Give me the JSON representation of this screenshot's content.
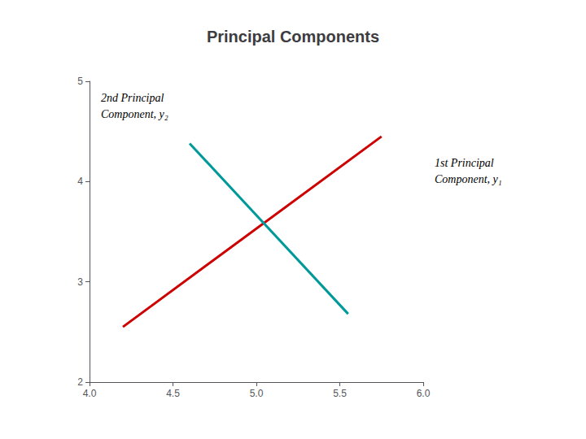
{
  "chart_data": {
    "type": "line",
    "title": "Principal Components",
    "series": [
      {
        "color": "#CC0000",
        "x": [
          4.2,
          5.75
        ],
        "values": [
          2.55,
          4.45
        ],
        "marker": "arrow"
      },
      {
        "color": "#009999",
        "x": [
          5.55,
          4.6
        ],
        "values": [
          2.68,
          4.38
        ],
        "marker": "arrow"
      }
    ],
    "annotations": [
      {
        "text": "2nd Principal\nComponent, y₂"
      },
      {
        "text": "1st Principal\nComponent, y₁"
      }
    ],
    "xlim": [
      4.0,
      6.0
    ],
    "ylim": [
      2.0,
      5.0
    ],
    "xticks": [
      {
        "value": 4.0,
        "label": "4.0"
      },
      {
        "value": 4.5,
        "label": "4.5"
      },
      {
        "value": 5.0,
        "label": "5.0"
      },
      {
        "value": 5.5,
        "label": "5.5"
      },
      {
        "value": 6.0,
        "label": "6.0"
      }
    ],
    "yticks": [
      2,
      3,
      4,
      5
    ],
    "grid": false
  }
}
